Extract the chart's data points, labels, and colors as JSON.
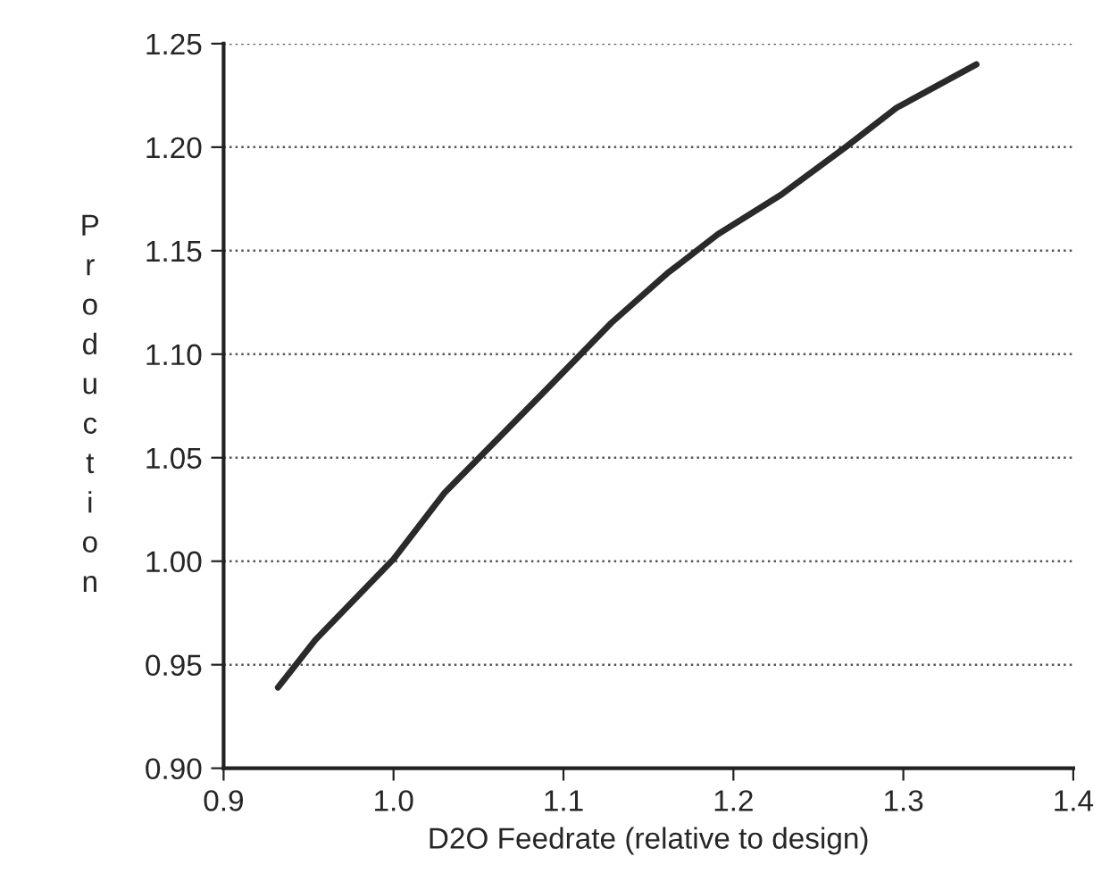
{
  "chart_data": {
    "type": "line",
    "xlabel": "D2O Feedrate (relative to design)",
    "ylabel": "Production",
    "x": [
      0.932,
      0.954,
      1.0,
      1.03,
      1.06,
      1.09,
      1.128,
      1.161,
      1.191,
      1.228,
      1.266,
      1.296,
      1.343
    ],
    "series": [
      {
        "color": "#2a2a2a",
        "values": [
          0.939,
          0.962,
          1.001,
          1.033,
          1.058,
          1.083,
          1.115,
          1.139,
          1.158,
          1.177,
          1.2,
          1.219,
          1.24
        ]
      }
    ],
    "xlim": [
      0.9,
      1.4
    ],
    "xticks": [
      0.9,
      {
        "value": 1.0,
        "label": "1.0"
      },
      1.1,
      1.2,
      1.3,
      1.4
    ],
    "ylim": [
      0.9,
      1.25
    ],
    "yticks": [
      {
        "value": 0.9,
        "label": "0.90"
      },
      0.95,
      {
        "value": 1.0,
        "label": "1.00"
      },
      1.05,
      {
        "value": 1.1,
        "label": "1.10"
      },
      1.15,
      {
        "value": 1.2,
        "label": "1.20"
      },
      1.25
    ],
    "grid": "y",
    "line_style": "solid",
    "marker": "none"
  }
}
